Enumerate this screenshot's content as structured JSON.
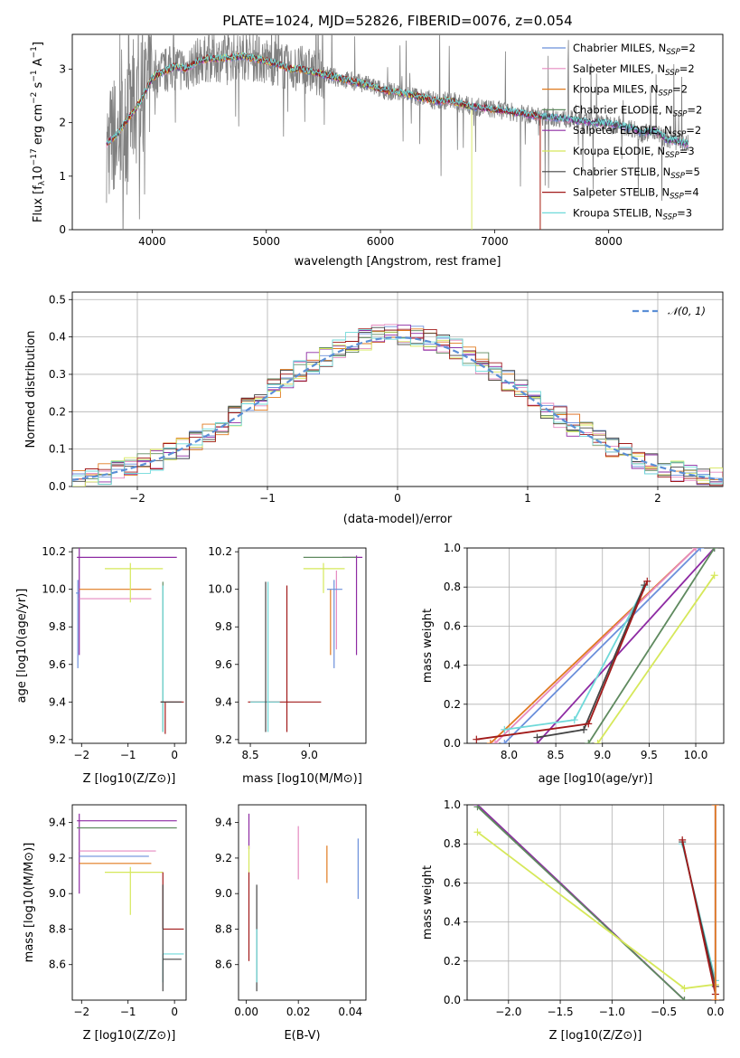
{
  "figure_title": "PLATE=1024, MJD=52826, FIBERID=0076, z=0.054",
  "colors": {
    "Chabrier MILES": "#6b8fdb",
    "Salpeter MILES": "#e58ac0",
    "Kroupa MILES": "#e07a1f",
    "Chabrier ELODIE": "#5f8a5f",
    "Salpeter ELODIE": "#8e2ba3",
    "Kroupa ELODIE": "#d6e85a",
    "Chabrier STELIB": "#444444",
    "Salpeter STELIB": "#a11a1a",
    "Kroupa STELIB": "#6fd9d9",
    "data": "#808080",
    "normal": "#5b8fd6"
  },
  "chart_data": [
    {
      "id": "spectrum",
      "type": "line",
      "title": "PLATE=1024, MJD=52826, FIBERID=0076, z=0.054",
      "xlabel": "wavelength [Angstrom, rest frame]",
      "ylabel": "Flux [f_λ 10^-17 erg cm^-2 s^-1 A^-1]",
      "xlim": [
        3300,
        9000
      ],
      "ylim": [
        0,
        3.65
      ],
      "xticks": [
        "4000",
        "5000",
        "6000",
        "7000",
        "8000"
      ],
      "yticks": [
        "0",
        "1",
        "2",
        "3"
      ],
      "legend_position": "upper right",
      "legend": [
        {
          "label": "Chabrier MILES, N",
          "sub": "SSP",
          "tail": "=2",
          "color_key": "Chabrier MILES"
        },
        {
          "label": "Salpeter MILES, N",
          "sub": "SSP",
          "tail": "=2",
          "color_key": "Salpeter MILES"
        },
        {
          "label": "Kroupa MILES, N",
          "sub": "SSP",
          "tail": "=2",
          "color_key": "Kroupa MILES"
        },
        {
          "label": "Chabrier ELODIE, N",
          "sub": "SSP",
          "tail": "=2",
          "color_key": "Chabrier ELODIE"
        },
        {
          "label": "Salpeter ELODIE, N",
          "sub": "SSP",
          "tail": "=2",
          "color_key": "Salpeter ELODIE"
        },
        {
          "label": "Kroupa ELODIE, N",
          "sub": "SSP",
          "tail": "=3",
          "color_key": "Kroupa ELODIE"
        },
        {
          "label": "Chabrier STELIB, N",
          "sub": "SSP",
          "tail": "=5",
          "color_key": "Chabrier STELIB"
        },
        {
          "label": "Salpeter STELIB, N",
          "sub": "SSP",
          "tail": "=4",
          "color_key": "Salpeter STELIB"
        },
        {
          "label": "Kroupa STELIB, N",
          "sub": "SSP",
          "tail": "=3",
          "color_key": "Kroupa STELIB"
        }
      ],
      "continuum": [
        [
          3600,
          1.6
        ],
        [
          3700,
          1.8
        ],
        [
          3800,
          2.1
        ],
        [
          3900,
          2.4
        ],
        [
          4000,
          2.85
        ],
        [
          4100,
          2.95
        ],
        [
          4200,
          3.05
        ],
        [
          4300,
          3.0
        ],
        [
          4400,
          3.15
        ],
        [
          4500,
          3.2
        ],
        [
          4600,
          3.2
        ],
        [
          4700,
          3.22
        ],
        [
          4800,
          3.25
        ],
        [
          4900,
          3.2
        ],
        [
          5000,
          3.15
        ],
        [
          5100,
          3.1
        ],
        [
          5200,
          3.0
        ],
        [
          5300,
          3.0
        ],
        [
          5400,
          2.95
        ],
        [
          5500,
          2.9
        ],
        [
          5600,
          2.85
        ],
        [
          5700,
          2.8
        ],
        [
          5800,
          2.75
        ],
        [
          5900,
          2.7
        ],
        [
          6000,
          2.62
        ],
        [
          6100,
          2.58
        ],
        [
          6200,
          2.55
        ],
        [
          6300,
          2.5
        ],
        [
          6400,
          2.45
        ],
        [
          6500,
          2.4
        ],
        [
          6600,
          2.42
        ],
        [
          6700,
          2.35
        ],
        [
          6800,
          2.3
        ],
        [
          6900,
          2.28
        ],
        [
          7000,
          2.25
        ],
        [
          7100,
          2.22
        ],
        [
          7200,
          2.18
        ],
        [
          7300,
          2.15
        ],
        [
          7400,
          2.12
        ],
        [
          7500,
          2.1
        ],
        [
          7600,
          2.08
        ],
        [
          7700,
          2.05
        ],
        [
          7800,
          2.02
        ],
        [
          7900,
          2.0
        ],
        [
          8000,
          1.98
        ],
        [
          8100,
          1.95
        ],
        [
          8200,
          1.9
        ],
        [
          8300,
          1.8
        ],
        [
          8400,
          1.85
        ],
        [
          8500,
          1.7
        ],
        [
          8600,
          1.65
        ],
        [
          8700,
          1.6
        ]
      ],
      "data_wavelength_range": [
        3600,
        8700
      ],
      "model_ends": {
        "Kroupa ELODIE": 6800,
        "Salpeter STELIB": 7400,
        "Kroupa MILES": 7400
      }
    },
    {
      "id": "residuals",
      "type": "line",
      "xlabel": "(data-model)/error",
      "ylabel": "Normed distribution",
      "xlim": [
        -2.5,
        2.5
      ],
      "ylim": [
        0,
        0.52
      ],
      "xticks": [
        "−2",
        "−1",
        "0",
        "1",
        "2"
      ],
      "xtick_values": [
        -2,
        -1,
        0,
        1,
        2
      ],
      "yticks": [
        "0.0",
        "0.1",
        "0.2",
        "0.3",
        "0.4",
        "0.5"
      ],
      "grid": true,
      "legend_position": "upper right",
      "legend": [
        {
          "label": "𝒩(0, 1)",
          "style": "dashed",
          "color_key": "normal"
        }
      ],
      "series_note": "step histograms, one per model, bin width 0.1"
    },
    {
      "id": "age-vs-Z",
      "type": "scatter",
      "xlabel": "Z [log10(Z/Z⊙)]",
      "ylabel": "age [log10(age/yr)]",
      "xlim": [
        -2.2,
        0.25
      ],
      "ylim": [
        9.18,
        10.22
      ],
      "xticks": [
        "−2",
        "−1",
        "0"
      ],
      "xtick_values": [
        -2,
        -1,
        0
      ],
      "yticks": [
        "9.2",
        "9.4",
        "9.6",
        "9.8",
        "10.0",
        "10.2"
      ],
      "ytick_values": [
        9.2,
        9.4,
        9.6,
        9.8,
        10.0,
        10.2
      ],
      "errorbars": [
        {
          "m": "Salpeter ELODIE",
          "x": -2.05,
          "y": 10.17,
          "x0": -2.1,
          "x1": 0.05,
          "y0": 9.65,
          "y1": 10.22
        },
        {
          "m": "Kroupa MILES",
          "x": -1.0,
          "y": 10.0,
          "x0": -2.05,
          "x1": -0.5,
          "y0": 10.0,
          "y1": 10.0
        },
        {
          "m": "Salpeter MILES",
          "x": -1.0,
          "y": 9.95,
          "x0": -2.05,
          "x1": -0.5,
          "y0": 9.95,
          "y1": 9.95
        },
        {
          "m": "Kroupa ELODIE",
          "x": -0.95,
          "y": 10.11,
          "x0": -1.5,
          "x1": -0.25,
          "y0": 9.93,
          "y1": 10.14
        },
        {
          "m": "Chabrier MILES",
          "x": -2.08,
          "y": 9.98,
          "x0": -2.12,
          "x1": -2.05,
          "y0": 9.58,
          "y1": 10.05
        },
        {
          "m": "Chabrier ELODIE",
          "x": -0.25,
          "y": 9.95,
          "x0": -0.25,
          "x1": -0.25,
          "y0": 9.24,
          "y1": 10.04
        },
        {
          "m": "Kroupa STELIB",
          "x": -0.25,
          "y": 9.9,
          "x0": -0.25,
          "x1": -0.25,
          "y0": 9.24,
          "y1": 10.02
        },
        {
          "m": "Salpeter STELIB",
          "x": -0.2,
          "y": 9.4,
          "x0": -0.3,
          "x1": 0.2,
          "y0": 9.23,
          "y1": 9.4
        },
        {
          "m": "Chabrier STELIB",
          "x": -0.2,
          "y": 9.4,
          "x0": -0.3,
          "x1": 0.15,
          "y0": 9.4,
          "y1": 9.4
        }
      ]
    },
    {
      "id": "age-vs-mass",
      "type": "scatter",
      "xlabel": "mass [log10(M/M⊙)]",
      "xlim": [
        8.4,
        9.48
      ],
      "ylim": [
        9.18,
        10.22
      ],
      "xticks": [
        "8.5",
        "9.0"
      ],
      "xtick_values": [
        8.5,
        9.0
      ],
      "yticks": [
        "9.2",
        "9.4",
        "9.6",
        "9.8",
        "10.0",
        "10.2"
      ],
      "ytick_values": [
        9.2,
        9.4,
        9.6,
        9.8,
        10.0,
        10.2
      ],
      "errorbars": [
        {
          "m": "Salpeter ELODIE",
          "x": 9.4,
          "y": 10.17,
          "x0": 9.28,
          "x1": 9.45,
          "y0": 9.65,
          "y1": 10.18
        },
        {
          "m": "Chabrier ELODIE",
          "x": 9.2,
          "y": 10.17,
          "x0": 8.95,
          "x1": 9.4,
          "y0": 10.17,
          "y1": 10.17
        },
        {
          "m": "Kroupa ELODIE",
          "x": 9.12,
          "y": 10.11,
          "x0": 8.95,
          "x1": 9.3,
          "y0": 9.98,
          "y1": 10.14
        },
        {
          "m": "Kroupa MILES",
          "x": 9.18,
          "y": 10.0,
          "x0": 9.18,
          "x1": 9.18,
          "y0": 9.65,
          "y1": 10.0
        },
        {
          "m": "Salpeter MILES",
          "x": 9.23,
          "y": 10.0,
          "x0": 9.23,
          "x1": 9.23,
          "y0": 9.68,
          "y1": 10.1
        },
        {
          "m": "Chabrier MILES",
          "x": 9.21,
          "y": 10.0,
          "x0": 9.15,
          "x1": 9.28,
          "y0": 9.58,
          "y1": 10.05
        },
        {
          "m": "Salpeter STELIB",
          "x": 8.81,
          "y": 9.4,
          "x0": 8.48,
          "x1": 9.1,
          "y0": 9.24,
          "y1": 10.02
        },
        {
          "m": "Kroupa STELIB",
          "x": 8.65,
          "y": 9.4,
          "x0": 8.5,
          "x1": 8.75,
          "y0": 9.24,
          "y1": 10.04
        },
        {
          "m": "Chabrier STELIB",
          "x": 8.63,
          "y": 9.4,
          "x0": 8.63,
          "x1": 8.63,
          "y0": 9.24,
          "y1": 10.04
        }
      ]
    },
    {
      "id": "weight-vs-age",
      "type": "line",
      "xlabel": "age [log10(age/yr)]",
      "ylabel": "mass weight",
      "xlim": [
        7.55,
        10.3
      ],
      "ylim": [
        0.0,
        1.0
      ],
      "xticks": [
        "8.0",
        "8.5",
        "9.0",
        "9.5",
        "10.0"
      ],
      "xtick_values": [
        8.0,
        8.5,
        9.0,
        9.5,
        10.0
      ],
      "yticks": [
        "0.0",
        "0.2",
        "0.4",
        "0.6",
        "0.8",
        "1.0"
      ],
      "ytick_values": [
        0,
        0.2,
        0.4,
        0.6,
        0.8,
        1.0
      ],
      "grid": true,
      "series": [
        {
          "m": "Kroupa MILES",
          "x": [
            7.8,
            10.0
          ],
          "y": [
            0.0,
            1.0
          ]
        },
        {
          "m": "Salpeter MILES",
          "x": [
            7.85,
            10.0
          ],
          "y": [
            0.0,
            1.0
          ]
        },
        {
          "m": "Chabrier MILES",
          "x": [
            7.95,
            10.05
          ],
          "y": [
            0.0,
            1.0
          ]
        },
        {
          "m": "Salpeter ELODIE",
          "x": [
            8.3,
            10.2
          ],
          "y": [
            0.0,
            1.0
          ]
        },
        {
          "m": "Chabrier ELODIE",
          "x": [
            8.85,
            10.2
          ],
          "y": [
            0.0,
            1.0
          ]
        },
        {
          "m": "Kroupa ELODIE",
          "x": [
            8.95,
            10.2
          ],
          "y": [
            0.0,
            0.86
          ]
        },
        {
          "m": "Kroupa STELIB",
          "x": [
            7.95,
            8.7,
            9.45
          ],
          "y": [
            0.07,
            0.12,
            0.8
          ]
        },
        {
          "m": "Chabrier STELIB",
          "x": [
            8.3,
            8.8,
            9.45
          ],
          "y": [
            0.03,
            0.07,
            0.81
          ]
        },
        {
          "m": "Salpeter STELIB",
          "x": [
            7.65,
            8.85,
            9.48
          ],
          "y": [
            0.02,
            0.1,
            0.83
          ]
        }
      ]
    },
    {
      "id": "mass-vs-Z",
      "type": "scatter",
      "xlabel": "Z [log10(Z/Z⊙)]",
      "ylabel": "mass [log10(M/M⊙)]",
      "xlim": [
        -2.2,
        0.25
      ],
      "ylim": [
        8.4,
        9.5
      ],
      "xticks": [
        "−2",
        "−1",
        "0"
      ],
      "xtick_values": [
        -2,
        -1,
        0
      ],
      "yticks": [
        "8.6",
        "8.8",
        "9.0",
        "9.2",
        "9.4"
      ],
      "ytick_values": [
        8.6,
        8.8,
        9.0,
        9.2,
        9.4
      ],
      "errorbars": [
        {
          "m": "Salpeter ELODIE",
          "x": -2.05,
          "y": 9.41,
          "x0": -2.1,
          "x1": 0.05,
          "y0": 9.0,
          "y1": 9.45
        },
        {
          "m": "Chabrier ELODIE",
          "x": -1.0,
          "y": 9.37,
          "x0": -2.1,
          "x1": 0.05,
          "y0": 9.37,
          "y1": 9.37
        },
        {
          "m": "Salpeter MILES",
          "x": -1.0,
          "y": 9.24,
          "x0": -2.05,
          "x1": -0.4,
          "y0": 9.24,
          "y1": 9.24
        },
        {
          "m": "Chabrier MILES",
          "x": -1.0,
          "y": 9.21,
          "x0": -2.05,
          "x1": -0.55,
          "y0": 9.21,
          "y1": 9.21
        },
        {
          "m": "Kroupa MILES",
          "x": -1.0,
          "y": 9.17,
          "x0": -2.05,
          "x1": -0.5,
          "y0": 9.17,
          "y1": 9.17
        },
        {
          "m": "Kroupa ELODIE",
          "x": -0.95,
          "y": 9.12,
          "x0": -1.5,
          "x1": -0.25,
          "y0": 8.88,
          "y1": 9.15
        },
        {
          "m": "Salpeter STELIB",
          "x": -0.25,
          "y": 8.8,
          "x0": -0.25,
          "x1": 0.2,
          "y0": 8.8,
          "y1": 9.12
        },
        {
          "m": "Kroupa STELIB",
          "x": -0.25,
          "y": 8.66,
          "x0": -0.25,
          "x1": 0.2,
          "y0": 8.5,
          "y1": 8.66
        },
        {
          "m": "Chabrier STELIB",
          "x": -0.25,
          "y": 8.63,
          "x0": -0.25,
          "x1": 0.15,
          "y0": 8.45,
          "y1": 9.05
        }
      ]
    },
    {
      "id": "mass-vs-ebv",
      "type": "scatter",
      "xlabel": "E(B-V)",
      "xlim": [
        -0.003,
        0.046
      ],
      "ylim": [
        8.4,
        9.5
      ],
      "xticks": [
        "0.00",
        "0.02",
        "0.04"
      ],
      "xtick_values": [
        0,
        0.02,
        0.04
      ],
      "yticks": [
        "8.6",
        "8.8",
        "9.0",
        "9.2",
        "9.4"
      ],
      "ytick_values": [
        8.6,
        8.8,
        9.0,
        9.2,
        9.4
      ],
      "errorbars": [
        {
          "m": "Salpeter ELODIE",
          "x": 0.001,
          "y": 9.35,
          "x0": 0.001,
          "x1": 0.001,
          "y0": 9.25,
          "y1": 9.45
        },
        {
          "m": "Kroupa ELODIE",
          "x": 0.001,
          "y": 9.2,
          "x0": 0.001,
          "x1": 0.001,
          "y0": 9.12,
          "y1": 9.27
        },
        {
          "m": "Salpeter STELIB",
          "x": 0.001,
          "y": 8.9,
          "x0": 0.001,
          "x1": 0.001,
          "y0": 8.62,
          "y1": 9.12
        },
        {
          "m": "Chabrier STELIB",
          "x": 0.004,
          "y": 8.8,
          "x0": 0.004,
          "x1": 0.004,
          "y0": 8.45,
          "y1": 9.05
        },
        {
          "m": "Kroupa STELIB",
          "x": 0.004,
          "y": 8.66,
          "x0": 0.004,
          "x1": 0.004,
          "y0": 8.5,
          "y1": 8.8
        },
        {
          "m": "Salpeter MILES",
          "x": 0.02,
          "y": 9.24,
          "x0": 0.02,
          "x1": 0.02,
          "y0": 9.08,
          "y1": 9.38
        },
        {
          "m": "Kroupa MILES",
          "x": 0.031,
          "y": 9.17,
          "x0": 0.031,
          "x1": 0.031,
          "y0": 9.06,
          "y1": 9.27
        },
        {
          "m": "Chabrier MILES",
          "x": 0.043,
          "y": 9.2,
          "x0": 0.043,
          "x1": 0.043,
          "y0": 8.97,
          "y1": 9.31
        }
      ]
    },
    {
      "id": "weight-vs-Z",
      "type": "line",
      "xlabel": "Z [log10(Z/Z⊙)]",
      "ylabel": "mass weight",
      "xlim": [
        -2.4,
        0.08
      ],
      "ylim": [
        0.0,
        1.0
      ],
      "xticks": [
        "−2.0",
        "−1.5",
        "−1.0",
        "−0.5",
        "0.0"
      ],
      "xtick_values": [
        -2.0,
        -1.5,
        -1.0,
        -0.5,
        0.0
      ],
      "yticks": [
        "0.0",
        "0.2",
        "0.4",
        "0.6",
        "0.8",
        "1.0"
      ],
      "ytick_values": [
        0,
        0.2,
        0.4,
        0.6,
        0.8,
        1.0
      ],
      "grid": true,
      "series": [
        {
          "m": "Salpeter ELODIE",
          "x": [
            -2.3,
            -0.3
          ],
          "y": [
            1.0,
            0.0
          ]
        },
        {
          "m": "Chabrier ELODIE",
          "x": [
            -2.3,
            -0.3
          ],
          "y": [
            0.99,
            0.0
          ]
        },
        {
          "m": "Kroupa ELODIE",
          "x": [
            -2.3,
            -0.3,
            0.0
          ],
          "y": [
            0.86,
            0.06,
            0.08
          ]
        },
        {
          "m": "Kroupa STELIB",
          "x": [
            -0.32,
            0.0
          ],
          "y": [
            0.8,
            0.1
          ]
        },
        {
          "m": "Chabrier STELIB",
          "x": [
            -0.32,
            0.0
          ],
          "y": [
            0.81,
            0.07
          ]
        },
        {
          "m": "Salpeter STELIB",
          "x": [
            -0.32,
            0.0
          ],
          "y": [
            0.82,
            0.03
          ]
        },
        {
          "m": "Chabrier MILES",
          "x": [
            0.0,
            0.0
          ],
          "y": [
            0.0,
            1.0
          ]
        },
        {
          "m": "Salpeter MILES",
          "x": [
            0.0,
            0.0
          ],
          "y": [
            0.0,
            1.0
          ]
        },
        {
          "m": "Kroupa MILES",
          "x": [
            0.0,
            0.0
          ],
          "y": [
            0.0,
            1.0
          ]
        }
      ]
    }
  ]
}
